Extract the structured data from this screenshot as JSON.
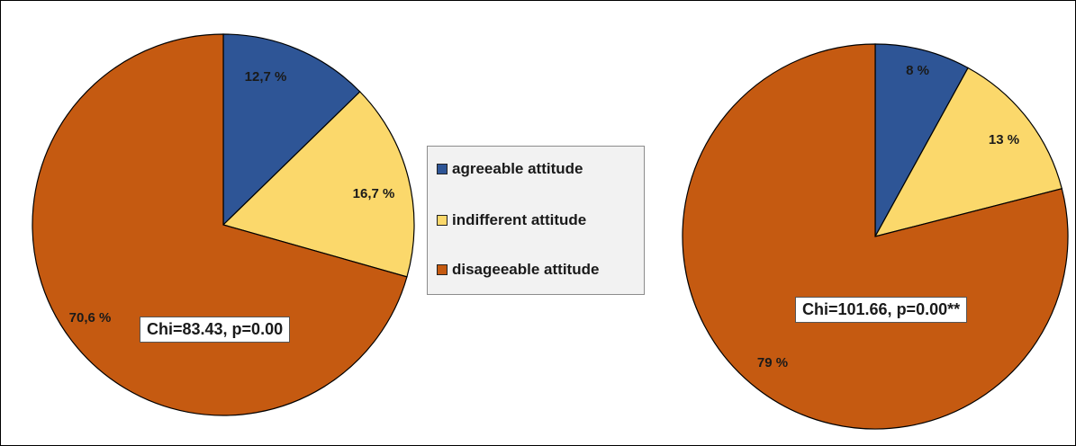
{
  "colors": {
    "agreeable": "#2e5596",
    "indifferent": "#fbd86b",
    "disagreeable": "#c55a11"
  },
  "legend": {
    "items": [
      {
        "label": "agreeable attitude",
        "color": "#2e5596"
      },
      {
        "label": "indifferent attitude",
        "color": "#fbd86b"
      },
      {
        "label": "disageeable attitude",
        "color": "#c55a11"
      }
    ]
  },
  "chart_data": [
    {
      "type": "pie",
      "categories": [
        "agreeable attitude",
        "indifferent attitude",
        "disageeable attitude"
      ],
      "values": [
        12.7,
        16.7,
        70.6
      ],
      "labels": [
        "12,7 %",
        "16,7 %",
        "70,6 %"
      ],
      "annotation": "Chi=83.43, p=0.00",
      "start": "12 o'clock, clockwise"
    },
    {
      "type": "pie",
      "categories": [
        "agreeable attitude",
        "indifferent attitude",
        "disageeable attitude"
      ],
      "values": [
        8,
        13,
        79
      ],
      "labels": [
        "8 %",
        "13 %",
        "79 %"
      ],
      "annotation": "Chi=101.66, p=0.00**",
      "start": "12 o'clock, clockwise"
    }
  ]
}
